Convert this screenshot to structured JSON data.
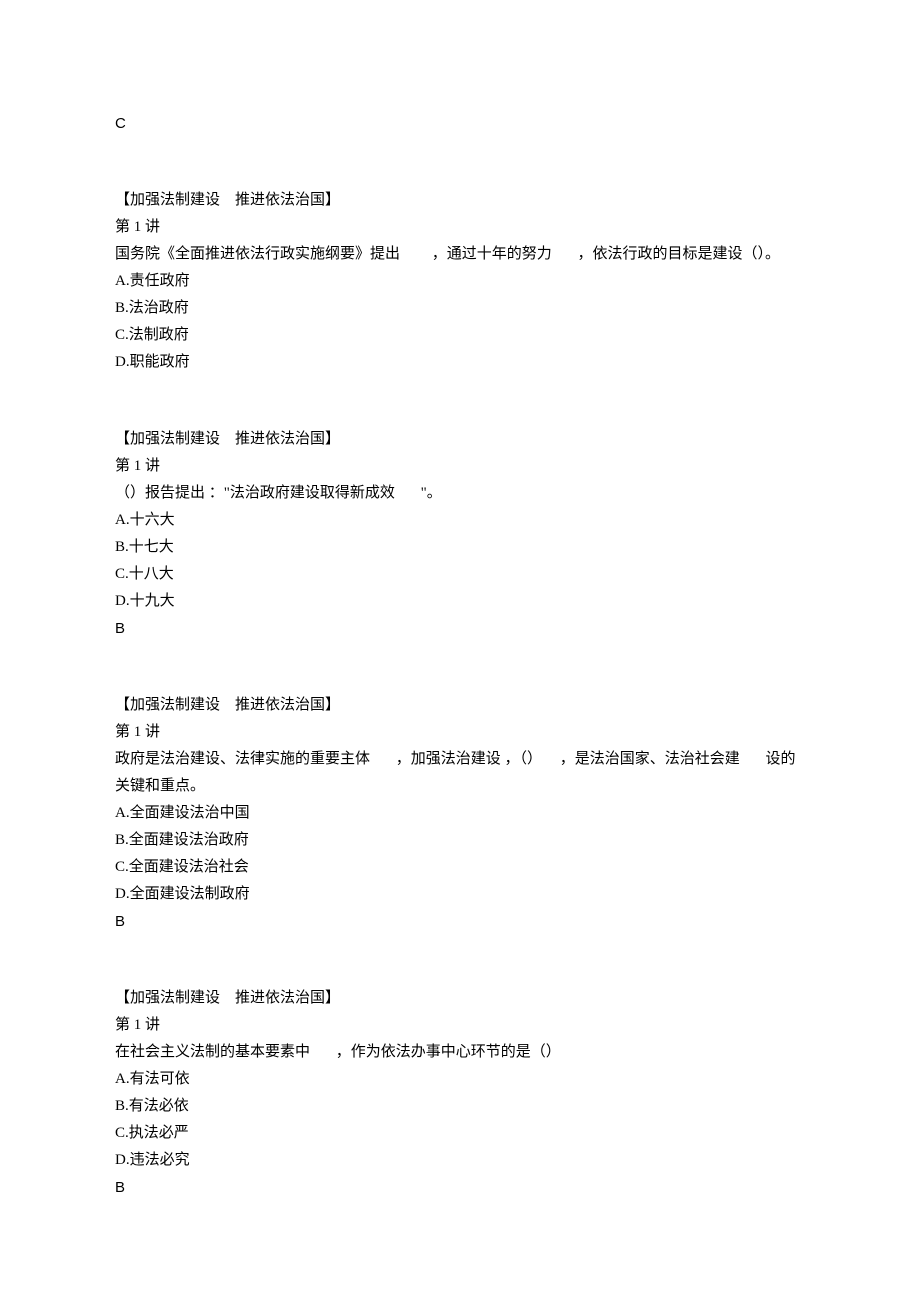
{
  "top_answer": "C",
  "section_title": "【加强法制建设　推进依法治国】",
  "lecture_label": "第 1 讲",
  "questions": [
    {
      "stem_segments": [
        {
          "text": "国务院《全面推进依法行政实施纲要》提出",
          "gap": ""
        },
        {
          "text": "，通过十年的努力",
          "gap": "gap-lg"
        },
        {
          "text": "，依法行政的目标是建设（）。",
          "gap": "gap-md"
        }
      ],
      "options": [
        "A.责任政府",
        "B.法治政府",
        "C.法制政府",
        "D.职能政府"
      ],
      "answer": ""
    },
    {
      "stem_segments": [
        {
          "text": "（）报告提出 ：\"法治政府建设取得新成效",
          "gap": ""
        },
        {
          "text": "\"。",
          "gap": "gap-md"
        }
      ],
      "options": [
        "A.十六大",
        "B.十七大",
        "C.十八大",
        "D.十九大"
      ],
      "answer": "B"
    },
    {
      "stem_segments": [
        {
          "text": "政府是法治建设、法律实施的重要主体",
          "gap": ""
        },
        {
          "text": "，加强法治建设 ，（）",
          "gap": "gap-md"
        },
        {
          "text": "，是法治国家、法治社会建",
          "gap": "gap-sm"
        },
        {
          "text": "设的",
          "gap": "gap-md"
        }
      ],
      "stem_line2": "关键和重点。",
      "options": [
        "A.全面建设法治中国",
        "B.全面建设法治政府",
        "C.全面建设法治社会",
        "D.全面建设法制政府"
      ],
      "answer": "B"
    },
    {
      "stem_segments": [
        {
          "text": "在社会主义法制的基本要素中",
          "gap": ""
        },
        {
          "text": "，作为依法办事中心环节的是（）",
          "gap": "gap-md"
        }
      ],
      "options": [
        "A.有法可依",
        "B.有法必依",
        "C.执法必严",
        "D.违法必究"
      ],
      "answer": "B"
    }
  ]
}
